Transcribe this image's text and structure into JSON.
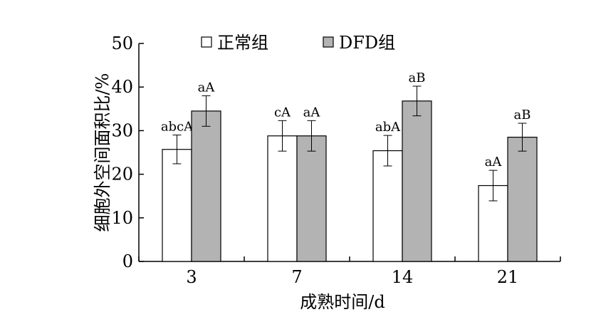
{
  "chart_data": {
    "type": "bar",
    "title": "",
    "xlabel": "成熟时间/d",
    "ylabel": "细胞外空间面积比/%",
    "categories": [
      "3",
      "7",
      "14",
      "21"
    ],
    "ylim": [
      0,
      50
    ],
    "yticks": [
      0,
      10,
      20,
      30,
      40,
      50
    ],
    "grid": false,
    "legend": "top",
    "series": [
      {
        "name": "正常组",
        "color": "#ffffff",
        "values": [
          25.7,
          28.8,
          25.4,
          17.4
        ],
        "errors": [
          3.3,
          3.5,
          3.5,
          3.5
        ],
        "labels": [
          "abcA",
          "cA",
          "abA",
          "aA"
        ]
      },
      {
        "name": "DFD组",
        "color": "#b3b3b3",
        "values": [
          34.5,
          28.8,
          36.8,
          28.5
        ],
        "errors": [
          3.5,
          3.5,
          3.4,
          3.2
        ],
        "labels": [
          "aA",
          "aA",
          "aB",
          "aB"
        ]
      }
    ]
  }
}
